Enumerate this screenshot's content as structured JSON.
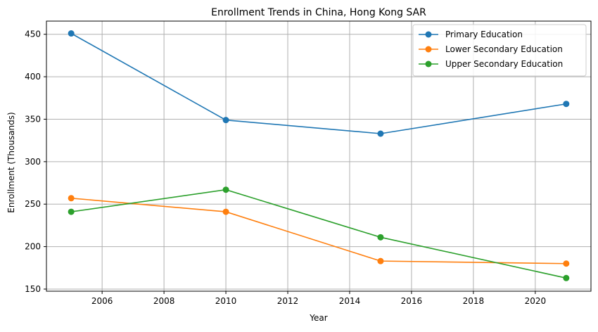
{
  "chart_data": {
    "type": "line",
    "title": "Enrollment Trends in China, Hong Kong SAR",
    "xlabel": "Year",
    "ylabel": "Enrollment (Thousands)",
    "x": [
      2005,
      2010,
      2015,
      2021
    ],
    "xlim": [
      2004.2,
      2021.8
    ],
    "ylim": [
      147.5,
      465.5
    ],
    "xticks": [
      2006,
      2008,
      2010,
      2012,
      2014,
      2016,
      2018,
      2020
    ],
    "yticks": [
      150,
      200,
      250,
      300,
      350,
      400,
      450
    ],
    "grid": true,
    "legend_position": "top-right",
    "series": [
      {
        "name": "Primary Education",
        "color": "#1f77b4",
        "values": [
          451,
          349,
          333,
          368
        ]
      },
      {
        "name": "Lower Secondary Education",
        "color": "#ff7f0e",
        "values": [
          257,
          241,
          183,
          180
        ]
      },
      {
        "name": "Upper Secondary Education",
        "color": "#2ca02c",
        "values": [
          241,
          267,
          211,
          163
        ]
      }
    ]
  }
}
